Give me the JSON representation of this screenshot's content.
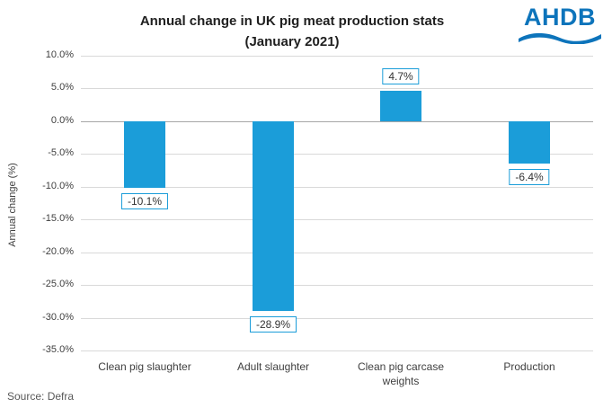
{
  "header": {
    "title_line1": "Annual change in UK pig meat production stats",
    "title_line2": "(January 2021)",
    "logo_text": "AHDB"
  },
  "footer": {
    "source": "Source: Defra"
  },
  "colors": {
    "bar": "#1b9dd9",
    "label_border": "#1b9dd9",
    "logo_blue": "#0d74bb",
    "gridline": "#d9d9d9",
    "zero_axis": "#a6a6a6",
    "text": "#404040"
  },
  "chart_data": {
    "type": "bar",
    "title": "Annual change in UK pig meat production stats (January 2021)",
    "categories": [
      "Clean pig slaughter",
      "Adult slaughter",
      "Clean pig carcase weights",
      "Production"
    ],
    "values": [
      -10.1,
      -28.9,
      4.7,
      -6.4
    ],
    "data_labels": [
      "-10.1%",
      "-28.9%",
      "4.7%",
      "-6.4%"
    ],
    "xlabel": "",
    "ylabel": "Annual change (%)",
    "ylim": [
      -35,
      10
    ],
    "ytick_step": 5,
    "ytick_labels": [
      "10.0%",
      "5.0%",
      "0.0%",
      "-5.0%",
      "-10.0%",
      "-15.0%",
      "-20.0%",
      "-25.0%",
      "-30.0%",
      "-35.0%"
    ],
    "grid": true,
    "legend": false
  }
}
